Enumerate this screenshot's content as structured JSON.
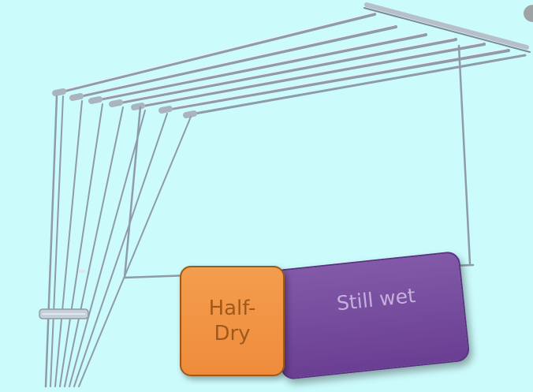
{
  "labels": {
    "half_dry": "Half-\nDry",
    "still_wet": "Still wet"
  },
  "colors": {
    "background": "#ccfbfb",
    "half_dry_fill": "#f0913f",
    "still_wet_fill": "#7449a0",
    "rack_metal": "#8e9aa6"
  },
  "icons": {
    "rack": "ceiling-clothes-drying-rack-illustration"
  }
}
